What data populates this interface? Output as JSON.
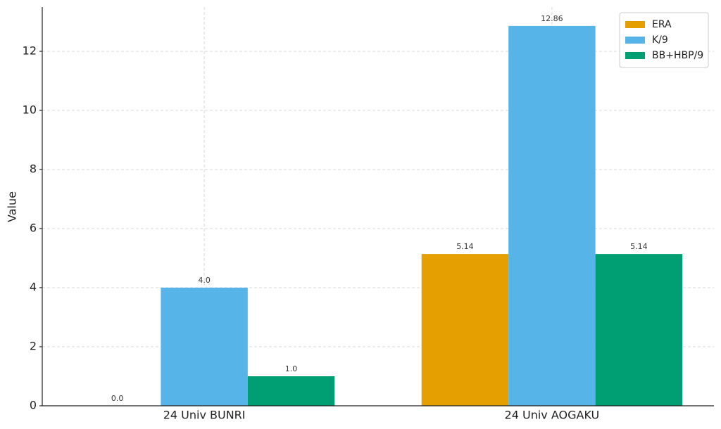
{
  "chart_data": {
    "type": "bar",
    "categories": [
      "24 Univ BUNRI",
      "24 Univ AOGAKU"
    ],
    "series": [
      {
        "name": "ERA",
        "color": "#E69F00",
        "values": [
          0.0,
          5.14
        ],
        "value_labels": [
          "0.0",
          "5.14"
        ]
      },
      {
        "name": "K/9",
        "color": "#56B4E9",
        "values": [
          4.0,
          12.86
        ],
        "value_labels": [
          "4.0",
          "12.86"
        ]
      },
      {
        "name": "BB+HBP/9",
        "color": "#009E73",
        "values": [
          1.0,
          5.14
        ],
        "value_labels": [
          "1.0",
          "5.14"
        ]
      }
    ],
    "y_label": "Value",
    "ylim": [
      0,
      13.5
    ],
    "yticks": [
      0,
      2,
      4,
      6,
      8,
      10,
      12
    ],
    "grid": true,
    "legend": "upper-right"
  }
}
